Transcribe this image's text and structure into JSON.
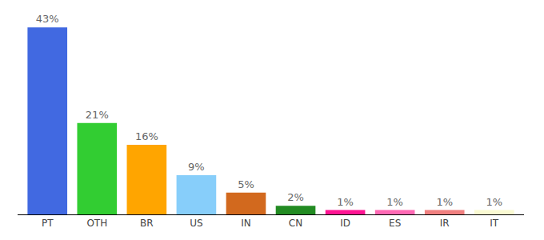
{
  "chart_data": {
    "type": "bar",
    "categories": [
      "PT",
      "OTH",
      "BR",
      "US",
      "IN",
      "CN",
      "ID",
      "ES",
      "IR",
      "IT"
    ],
    "values": [
      43,
      21,
      16,
      9,
      5,
      2,
      1,
      1,
      1,
      1
    ],
    "value_labels": [
      "43%",
      "21%",
      "16%",
      "9%",
      "5%",
      "2%",
      "1%",
      "1%",
      "1%",
      "1%"
    ],
    "colors": [
      "#4169e1",
      "#32cd32",
      "#ffa500",
      "#87cefa",
      "#d2691e",
      "#228b22",
      "#ff1493",
      "#ff69b4",
      "#f08080",
      "#fafad2"
    ],
    "data_labels": true,
    "tick_labels": "x",
    "grid": false
  }
}
